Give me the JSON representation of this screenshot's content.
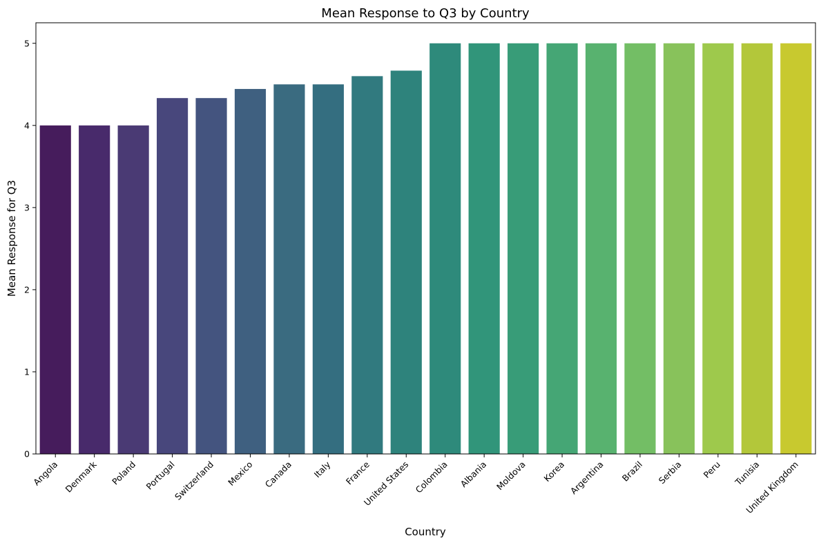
{
  "chart_data": {
    "type": "bar",
    "title": "Mean Response to Q3 by Country",
    "xlabel": "Country",
    "ylabel": "Mean Response for Q3",
    "ylim": [
      0,
      5.25
    ],
    "yticks": [
      0,
      1,
      2,
      3,
      4,
      5
    ],
    "categories": [
      "Angola",
      "Denmark",
      "Poland",
      "Portugal",
      "Switzerland",
      "Mexico",
      "Canada",
      "Italy",
      "France",
      "United States",
      "Colombia",
      "Albania",
      "Moldova",
      "Korea",
      "Argentina",
      "Brazil",
      "Serbia",
      "Peru",
      "Tunisia",
      "United Kingdom"
    ],
    "values": [
      4.0,
      4.0,
      4.0,
      4.333,
      4.333,
      4.444,
      4.5,
      4.5,
      4.6,
      4.667,
      5.0,
      5.0,
      5.0,
      5.0,
      5.0,
      5.0,
      5.0,
      5.0,
      5.0,
      5.0
    ],
    "colors": [
      "#461c5c",
      "#482a6b",
      "#4a3a74",
      "#48477c",
      "#44547f",
      "#3f6080",
      "#3a6b80",
      "#346e80",
      "#317a7f",
      "#2e837c",
      "#2e8a7b",
      "#31957a",
      "#389c78",
      "#45a675",
      "#58b26f",
      "#73be65",
      "#88c25b",
      "#9ec94c",
      "#b3c73a",
      "#c8c92f"
    ],
    "grid": false,
    "legend": "none"
  }
}
